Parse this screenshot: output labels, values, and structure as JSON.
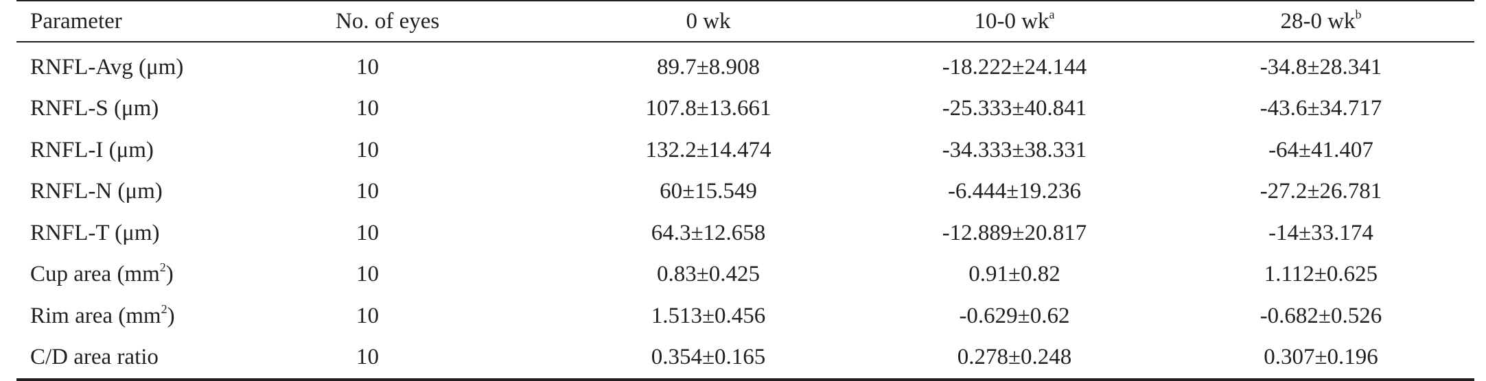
{
  "table": {
    "headers": {
      "parameter": "Parameter",
      "eyes": "No. of eyes",
      "week0": "0 wk",
      "week10": "10-0 wk",
      "week10_sup": "a",
      "week28": "28-0 wk",
      "week28_sup": "b"
    },
    "rows": [
      {
        "parameter": "RNFL-Avg (μm)",
        "unit_sup": "",
        "unit_close": "",
        "eyes": "10",
        "w0": "89.7±8.908",
        "w10": "-18.222±24.144",
        "w28": "-34.8±28.341"
      },
      {
        "parameter": "RNFL-S (μm)",
        "unit_sup": "",
        "unit_close": "",
        "eyes": "10",
        "w0": "107.8±13.661",
        "w10": "-25.333±40.841",
        "w28": "-43.6±34.717"
      },
      {
        "parameter": "RNFL-I (μm)",
        "unit_sup": "",
        "unit_close": "",
        "eyes": "10",
        "w0": "132.2±14.474",
        "w10": "-34.333±38.331",
        "w28": "-64±41.407"
      },
      {
        "parameter": "RNFL-N (μm)",
        "unit_sup": "",
        "unit_close": "",
        "eyes": "10",
        "w0": "60±15.549",
        "w10": "-6.444±19.236",
        "w28": "-27.2±26.781"
      },
      {
        "parameter": "RNFL-T (μm)",
        "unit_sup": "",
        "unit_close": "",
        "eyes": "10",
        "w0": "64.3±12.658",
        "w10": "-12.889±20.817",
        "w28": "-14±33.174"
      },
      {
        "parameter": "Cup area (mm",
        "unit_sup": "2",
        "unit_close": ")",
        "eyes": "10",
        "w0": "0.83±0.425",
        "w10": "0.91±0.82",
        "w28": "1.112±0.625"
      },
      {
        "parameter": "Rim area (mm",
        "unit_sup": "2",
        "unit_close": ")",
        "eyes": "10",
        "w0": "1.513±0.456",
        "w10": "-0.629±0.62",
        "w28": "-0.682±0.526"
      },
      {
        "parameter": "C/D area ratio",
        "unit_sup": "",
        "unit_close": "",
        "eyes": "10",
        "w0": "0.354±0.165",
        "w10": "0.278±0.248",
        "w28": "0.307±0.196"
      }
    ]
  }
}
